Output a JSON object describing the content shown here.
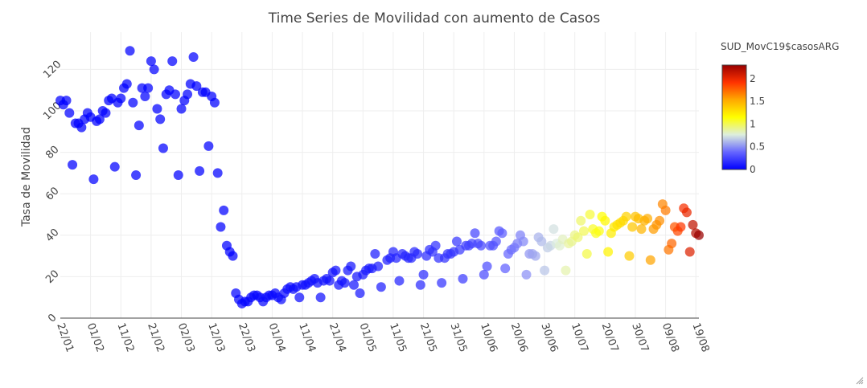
{
  "chart_data": {
    "type": "scatter",
    "title": "Time Series de Movilidad con aumento de Casos",
    "xlabel": "",
    "ylabel": "Tasa de Movilidad",
    "colorbar_title": "SUD_MovC19$casosARG",
    "colorbar_ticks": [
      "0",
      "0.5",
      "1",
      "1.5",
      "2"
    ],
    "colorbar_range": [
      0,
      2.3
    ],
    "colorscale": [
      "#0000ff",
      "#6666ff",
      "#ddeedd",
      "#ffff00",
      "#ffaa00",
      "#ff3300",
      "#990000"
    ],
    "x_ticks": [
      "22/01",
      "01/02",
      "11/02",
      "21/02",
      "02/03",
      "12/03",
      "22/03",
      "01/04",
      "11/04",
      "21/04",
      "01/05",
      "11/05",
      "21/05",
      "31/05",
      "10/06",
      "20/06",
      "30/06",
      "10/07",
      "20/07",
      "30/07",
      "09/08",
      "19/08"
    ],
    "y_ticks": [
      "0",
      "20",
      "40",
      "60",
      "80",
      "100",
      "120"
    ],
    "ylim": [
      0,
      138
    ],
    "xlim": [
      0,
      211
    ],
    "grid": true,
    "colorbar_position": "right",
    "points": [
      [
        0,
        105,
        0
      ],
      [
        1,
        103,
        0
      ],
      [
        2,
        105,
        0
      ],
      [
        3,
        99,
        0
      ],
      [
        4,
        74,
        0
      ],
      [
        5,
        94,
        0
      ],
      [
        6,
        94,
        0
      ],
      [
        7,
        92,
        0
      ],
      [
        8,
        96,
        0
      ],
      [
        9,
        99,
        0
      ],
      [
        10,
        97,
        0
      ],
      [
        11,
        67,
        0
      ],
      [
        12,
        95,
        0
      ],
      [
        13,
        96,
        0
      ],
      [
        14,
        100,
        0
      ],
      [
        15,
        99,
        0
      ],
      [
        16,
        105,
        0
      ],
      [
        17,
        106,
        0
      ],
      [
        18,
        73,
        0
      ],
      [
        19,
        104,
        0
      ],
      [
        20,
        106,
        0
      ],
      [
        21,
        111,
        0
      ],
      [
        22,
        113,
        0
      ],
      [
        23,
        129,
        0
      ],
      [
        24,
        104,
        0
      ],
      [
        25,
        69,
        0
      ],
      [
        26,
        93,
        0
      ],
      [
        27,
        111,
        0
      ],
      [
        28,
        107,
        0
      ],
      [
        29,
        111,
        0
      ],
      [
        30,
        124,
        0
      ],
      [
        31,
        120,
        0
      ],
      [
        32,
        101,
        0
      ],
      [
        33,
        96,
        0
      ],
      [
        34,
        82,
        0
      ],
      [
        35,
        108,
        0
      ],
      [
        36,
        110,
        0
      ],
      [
        37,
        124,
        0
      ],
      [
        38,
        108,
        0
      ],
      [
        39,
        69,
        0
      ],
      [
        40,
        101,
        0
      ],
      [
        41,
        105,
        0
      ],
      [
        42,
        108,
        0
      ],
      [
        43,
        113,
        0
      ],
      [
        44,
        126,
        0
      ],
      [
        45,
        112,
        0
      ],
      [
        46,
        71,
        0
      ],
      [
        47,
        109,
        0
      ],
      [
        48,
        109,
        0
      ],
      [
        49,
        83,
        0
      ],
      [
        50,
        107,
        0
      ],
      [
        51,
        104,
        0
      ],
      [
        52,
        70,
        0
      ],
      [
        53,
        44,
        0
      ],
      [
        54,
        52,
        0
      ],
      [
        55,
        35,
        0
      ],
      [
        56,
        32,
        0
      ],
      [
        57,
        30,
        0
      ],
      [
        58,
        12,
        0.01
      ],
      [
        59,
        9,
        0.01
      ],
      [
        60,
        7,
        0.02
      ],
      [
        61,
        8,
        0.02
      ],
      [
        62,
        8,
        0.02
      ],
      [
        63,
        10,
        0.02
      ],
      [
        64,
        11,
        0.02
      ],
      [
        65,
        11,
        0.02
      ],
      [
        66,
        10,
        0.03
      ],
      [
        67,
        8,
        0.03
      ],
      [
        68,
        10,
        0.03
      ],
      [
        69,
        11,
        0.03
      ],
      [
        70,
        11,
        0.03
      ],
      [
        71,
        12,
        0.03
      ],
      [
        72,
        10,
        0.04
      ],
      [
        73,
        9,
        0.04
      ],
      [
        74,
        12,
        0.04
      ],
      [
        75,
        14,
        0.04
      ],
      [
        76,
        15,
        0.04
      ],
      [
        77,
        14,
        0.05
      ],
      [
        78,
        15,
        0.05
      ],
      [
        79,
        10,
        0.05
      ],
      [
        80,
        16,
        0.05
      ],
      [
        81,
        16,
        0.05
      ],
      [
        82,
        17,
        0.06
      ],
      [
        83,
        18,
        0.06
      ],
      [
        84,
        19,
        0.06
      ],
      [
        85,
        17,
        0.06
      ],
      [
        86,
        10,
        0.06
      ],
      [
        87,
        18,
        0.06
      ],
      [
        88,
        19,
        0.07
      ],
      [
        89,
        18,
        0.07
      ],
      [
        90,
        22,
        0.07
      ],
      [
        91,
        23,
        0.07
      ],
      [
        92,
        16,
        0.07
      ],
      [
        93,
        18,
        0.08
      ],
      [
        94,
        17,
        0.08
      ],
      [
        95,
        23,
        0.08
      ],
      [
        96,
        25,
        0.08
      ],
      [
        97,
        16,
        0.08
      ],
      [
        98,
        20,
        0.09
      ],
      [
        99,
        12,
        0.09
      ],
      [
        100,
        21,
        0.09
      ],
      [
        101,
        23,
        0.1
      ],
      [
        102,
        24,
        0.1
      ],
      [
        103,
        24,
        0.1
      ],
      [
        104,
        31,
        0.11
      ],
      [
        105,
        25,
        0.11
      ],
      [
        106,
        15,
        0.11
      ],
      [
        108,
        28,
        0.12
      ],
      [
        109,
        29,
        0.12
      ],
      [
        110,
        32,
        0.13
      ],
      [
        111,
        29,
        0.13
      ],
      [
        112,
        18,
        0.13
      ],
      [
        113,
        31,
        0.14
      ],
      [
        114,
        30,
        0.14
      ],
      [
        115,
        29,
        0.14
      ],
      [
        116,
        29,
        0.15
      ],
      [
        117,
        32,
        0.15
      ],
      [
        118,
        31,
        0.15
      ],
      [
        119,
        16,
        0.16
      ],
      [
        120,
        21,
        0.16
      ],
      [
        121,
        30,
        0.17
      ],
      [
        122,
        33,
        0.17
      ],
      [
        123,
        32,
        0.18
      ],
      [
        124,
        35,
        0.18
      ],
      [
        125,
        29,
        0.18
      ],
      [
        126,
        17,
        0.19
      ],
      [
        127,
        29,
        0.19
      ],
      [
        128,
        31,
        0.2
      ],
      [
        129,
        31,
        0.2
      ],
      [
        130,
        32,
        0.2
      ],
      [
        131,
        37,
        0.21
      ],
      [
        132,
        33,
        0.22
      ],
      [
        133,
        19,
        0.22
      ],
      [
        134,
        35,
        0.23
      ],
      [
        135,
        35,
        0.24
      ],
      [
        136,
        36,
        0.25
      ],
      [
        137,
        41,
        0.26
      ],
      [
        138,
        36,
        0.26
      ],
      [
        139,
        35,
        0.27
      ],
      [
        140,
        21,
        0.28
      ],
      [
        141,
        25,
        0.29
      ],
      [
        142,
        35,
        0.3
      ],
      [
        143,
        35,
        0.31
      ],
      [
        144,
        37,
        0.32
      ],
      [
        145,
        42,
        0.33
      ],
      [
        146,
        41,
        0.35
      ],
      [
        147,
        24,
        0.36
      ],
      [
        148,
        31,
        0.38
      ],
      [
        149,
        33,
        0.4
      ],
      [
        150,
        34,
        0.42
      ],
      [
        151,
        36,
        0.44
      ],
      [
        152,
        40,
        0.46
      ],
      [
        153,
        37,
        0.48
      ],
      [
        154,
        21,
        0.5
      ],
      [
        155,
        31,
        0.52
      ],
      [
        156,
        31,
        0.55
      ],
      [
        157,
        30,
        0.57
      ],
      [
        158,
        39,
        0.6
      ],
      [
        159,
        37,
        0.62
      ],
      [
        160,
        23,
        0.65
      ],
      [
        161,
        34,
        0.67
      ],
      [
        162,
        35,
        0.7
      ],
      [
        163,
        43,
        0.73
      ],
      [
        164,
        36,
        0.76
      ],
      [
        165,
        35,
        0.79
      ],
      [
        166,
        38,
        0.82
      ],
      [
        167,
        23,
        0.85
      ],
      [
        168,
        36,
        0.88
      ],
      [
        169,
        37,
        0.9
      ],
      [
        170,
        40,
        0.92
      ],
      [
        171,
        39,
        0.95
      ],
      [
        172,
        47,
        0.97
      ],
      [
        173,
        42,
        1.0
      ],
      [
        174,
        31,
        1.03
      ],
      [
        175,
        50,
        1.05
      ],
      [
        176,
        43,
        1.08
      ],
      [
        177,
        41,
        1.1
      ],
      [
        178,
        42,
        1.12
      ],
      [
        179,
        49,
        1.15
      ],
      [
        180,
        47,
        1.18
      ],
      [
        181,
        32,
        1.2
      ],
      [
        182,
        41,
        1.22
      ],
      [
        183,
        44,
        1.25
      ],
      [
        184,
        45,
        1.28
      ],
      [
        185,
        46,
        1.3
      ],
      [
        186,
        47,
        1.32
      ],
      [
        187,
        49,
        1.35
      ],
      [
        188,
        30,
        1.38
      ],
      [
        189,
        44,
        1.4
      ],
      [
        190,
        49,
        1.42
      ],
      [
        191,
        48,
        1.45
      ],
      [
        192,
        43,
        1.48
      ],
      [
        193,
        47,
        1.5
      ],
      [
        194,
        48,
        1.52
      ],
      [
        195,
        28,
        1.55
      ],
      [
        196,
        43,
        1.58
      ],
      [
        197,
        45,
        1.6
      ],
      [
        198,
        47,
        1.62
      ],
      [
        199,
        55,
        1.65
      ],
      [
        200,
        52,
        1.68
      ],
      [
        201,
        33,
        1.7
      ],
      [
        202,
        36,
        1.75
      ],
      [
        203,
        44,
        1.8
      ],
      [
        204,
        42,
        1.85
      ],
      [
        205,
        44,
        1.9
      ],
      [
        206,
        53,
        1.95
      ],
      [
        207,
        51,
        2.0
      ],
      [
        208,
        32,
        2.05
      ],
      [
        209,
        45,
        2.15
      ],
      [
        210,
        41,
        2.2
      ],
      [
        211,
        40,
        2.3
      ]
    ]
  }
}
